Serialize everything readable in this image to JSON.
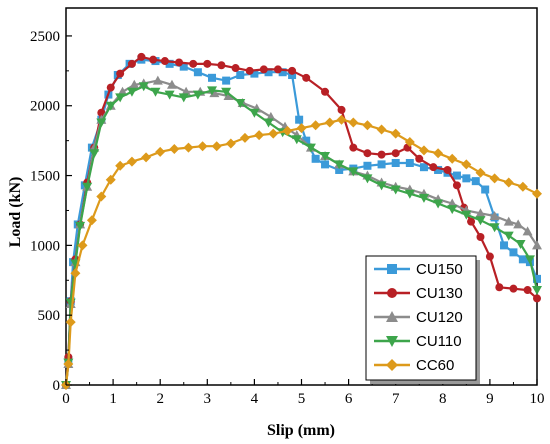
{
  "chart_data": {
    "type": "line",
    "title": "",
    "xlabel": "Slip (mm)",
    "ylabel": "Load (kN)",
    "xlim": [
      0,
      10
    ],
    "ylim": [
      0,
      2700
    ],
    "xticks": [
      0,
      1,
      2,
      3,
      4,
      5,
      6,
      7,
      8,
      9,
      10
    ],
    "yticks": [
      0,
      500,
      1000,
      1500,
      2000,
      2500
    ],
    "grid": false,
    "legend_position": "bottom-right",
    "series": [
      {
        "name": "CU150",
        "color": "#3b9ad9",
        "marker": "square",
        "points": [
          [
            0,
            0
          ],
          [
            0.05,
            180
          ],
          [
            0.1,
            600
          ],
          [
            0.15,
            880
          ],
          [
            0.25,
            1150
          ],
          [
            0.4,
            1430
          ],
          [
            0.55,
            1700
          ],
          [
            0.75,
            1900
          ],
          [
            0.9,
            2080
          ],
          [
            1.1,
            2220
          ],
          [
            1.35,
            2300
          ],
          [
            1.6,
            2330
          ],
          [
            1.9,
            2320
          ],
          [
            2.2,
            2300
          ],
          [
            2.5,
            2280
          ],
          [
            2.8,
            2240
          ],
          [
            3.1,
            2200
          ],
          [
            3.4,
            2180
          ],
          [
            3.7,
            2220
          ],
          [
            4.0,
            2230
          ],
          [
            4.3,
            2240
          ],
          [
            4.6,
            2240
          ],
          [
            4.8,
            2220
          ],
          [
            4.95,
            1900
          ],
          [
            5.1,
            1750
          ],
          [
            5.3,
            1620
          ],
          [
            5.5,
            1580
          ],
          [
            5.8,
            1540
          ],
          [
            6.1,
            1550
          ],
          [
            6.4,
            1570
          ],
          [
            6.7,
            1580
          ],
          [
            7.0,
            1590
          ],
          [
            7.3,
            1590
          ],
          [
            7.6,
            1560
          ],
          [
            7.9,
            1540
          ],
          [
            8.1,
            1520
          ],
          [
            8.3,
            1500
          ],
          [
            8.5,
            1480
          ],
          [
            8.7,
            1460
          ],
          [
            8.9,
            1400
          ],
          [
            9.1,
            1200
          ],
          [
            9.3,
            1000
          ],
          [
            9.5,
            950
          ],
          [
            9.7,
            900
          ],
          [
            9.85,
            880
          ],
          [
            10.0,
            760
          ]
        ]
      },
      {
        "name": "CU130",
        "color": "#b82025",
        "marker": "circle",
        "points": [
          [
            0,
            0
          ],
          [
            0.05,
            200
          ],
          [
            0.1,
            600
          ],
          [
            0.2,
            900
          ],
          [
            0.3,
            1150
          ],
          [
            0.45,
            1450
          ],
          [
            0.6,
            1700
          ],
          [
            0.75,
            1950
          ],
          [
            0.95,
            2130
          ],
          [
            1.15,
            2230
          ],
          [
            1.4,
            2300
          ],
          [
            1.6,
            2350
          ],
          [
            1.85,
            2330
          ],
          [
            2.1,
            2320
          ],
          [
            2.4,
            2310
          ],
          [
            2.7,
            2300
          ],
          [
            3.0,
            2300
          ],
          [
            3.3,
            2290
          ],
          [
            3.6,
            2270
          ],
          [
            3.9,
            2250
          ],
          [
            4.2,
            2260
          ],
          [
            4.5,
            2260
          ],
          [
            4.8,
            2250
          ],
          [
            5.1,
            2200
          ],
          [
            5.5,
            2100
          ],
          [
            5.85,
            1970
          ],
          [
            6.1,
            1700
          ],
          [
            6.4,
            1660
          ],
          [
            6.7,
            1650
          ],
          [
            7.0,
            1660
          ],
          [
            7.25,
            1700
          ],
          [
            7.5,
            1620
          ],
          [
            7.8,
            1560
          ],
          [
            8.1,
            1540
          ],
          [
            8.3,
            1430
          ],
          [
            8.45,
            1270
          ],
          [
            8.6,
            1170
          ],
          [
            8.8,
            1060
          ],
          [
            9.0,
            920
          ],
          [
            9.2,
            700
          ],
          [
            9.5,
            690
          ],
          [
            9.8,
            680
          ],
          [
            10.0,
            620
          ]
        ]
      },
      {
        "name": "CU120",
        "color": "#8c8c8c",
        "marker": "triangle-up",
        "points": [
          [
            0,
            0
          ],
          [
            0.05,
            150
          ],
          [
            0.1,
            580
          ],
          [
            0.2,
            880
          ],
          [
            0.3,
            1150
          ],
          [
            0.45,
            1420
          ],
          [
            0.6,
            1700
          ],
          [
            0.75,
            1900
          ],
          [
            0.95,
            2000
          ],
          [
            1.2,
            2100
          ],
          [
            1.45,
            2150
          ],
          [
            1.65,
            2160
          ],
          [
            1.95,
            2180
          ],
          [
            2.25,
            2150
          ],
          [
            2.55,
            2100
          ],
          [
            2.85,
            2100
          ],
          [
            3.15,
            2090
          ],
          [
            3.45,
            2070
          ],
          [
            3.75,
            2020
          ],
          [
            4.05,
            1980
          ],
          [
            4.35,
            1920
          ],
          [
            4.65,
            1850
          ],
          [
            4.9,
            1790
          ],
          [
            5.2,
            1700
          ],
          [
            5.5,
            1640
          ],
          [
            5.8,
            1580
          ],
          [
            6.1,
            1530
          ],
          [
            6.4,
            1500
          ],
          [
            6.7,
            1450
          ],
          [
            7.0,
            1420
          ],
          [
            7.3,
            1400
          ],
          [
            7.6,
            1370
          ],
          [
            7.9,
            1330
          ],
          [
            8.2,
            1300
          ],
          [
            8.5,
            1250
          ],
          [
            8.8,
            1230
          ],
          [
            9.1,
            1210
          ],
          [
            9.4,
            1170
          ],
          [
            9.6,
            1150
          ],
          [
            9.8,
            1100
          ],
          [
            10.0,
            1000
          ]
        ]
      },
      {
        "name": "CU110",
        "color": "#3da54b",
        "marker": "triangle-down",
        "points": [
          [
            0,
            0
          ],
          [
            0.05,
            160
          ],
          [
            0.1,
            590
          ],
          [
            0.2,
            870
          ],
          [
            0.3,
            1140
          ],
          [
            0.45,
            1420
          ],
          [
            0.6,
            1660
          ],
          [
            0.75,
            1880
          ],
          [
            0.95,
            2000
          ],
          [
            1.15,
            2060
          ],
          [
            1.4,
            2100
          ],
          [
            1.65,
            2140
          ],
          [
            1.9,
            2100
          ],
          [
            2.2,
            2080
          ],
          [
            2.5,
            2060
          ],
          [
            2.8,
            2080
          ],
          [
            3.1,
            2110
          ],
          [
            3.4,
            2100
          ],
          [
            3.7,
            2020
          ],
          [
            4.0,
            1950
          ],
          [
            4.3,
            1880
          ],
          [
            4.6,
            1810
          ],
          [
            4.9,
            1760
          ],
          [
            5.2,
            1700
          ],
          [
            5.5,
            1640
          ],
          [
            5.8,
            1580
          ],
          [
            6.1,
            1530
          ],
          [
            6.4,
            1480
          ],
          [
            6.7,
            1430
          ],
          [
            7.0,
            1400
          ],
          [
            7.3,
            1370
          ],
          [
            7.6,
            1340
          ],
          [
            7.9,
            1300
          ],
          [
            8.2,
            1260
          ],
          [
            8.5,
            1220
          ],
          [
            8.8,
            1180
          ],
          [
            9.1,
            1130
          ],
          [
            9.4,
            1070
          ],
          [
            9.65,
            1010
          ],
          [
            9.85,
            900
          ],
          [
            10.0,
            680
          ]
        ]
      },
      {
        "name": "CC60",
        "color": "#dd9a1b",
        "marker": "diamond",
        "points": [
          [
            0,
            0
          ],
          [
            0.05,
            150
          ],
          [
            0.1,
            450
          ],
          [
            0.2,
            800
          ],
          [
            0.35,
            1000
          ],
          [
            0.55,
            1180
          ],
          [
            0.75,
            1350
          ],
          [
            0.95,
            1470
          ],
          [
            1.15,
            1570
          ],
          [
            1.4,
            1600
          ],
          [
            1.7,
            1630
          ],
          [
            2.0,
            1670
          ],
          [
            2.3,
            1690
          ],
          [
            2.6,
            1700
          ],
          [
            2.9,
            1710
          ],
          [
            3.2,
            1710
          ],
          [
            3.5,
            1730
          ],
          [
            3.8,
            1770
          ],
          [
            4.1,
            1790
          ],
          [
            4.4,
            1800
          ],
          [
            4.7,
            1820
          ],
          [
            5.0,
            1840
          ],
          [
            5.3,
            1860
          ],
          [
            5.6,
            1880
          ],
          [
            5.85,
            1900
          ],
          [
            6.1,
            1880
          ],
          [
            6.4,
            1860
          ],
          [
            6.7,
            1830
          ],
          [
            7.0,
            1800
          ],
          [
            7.3,
            1740
          ],
          [
            7.6,
            1680
          ],
          [
            7.9,
            1660
          ],
          [
            8.2,
            1620
          ],
          [
            8.5,
            1580
          ],
          [
            8.8,
            1520
          ],
          [
            9.1,
            1480
          ],
          [
            9.4,
            1450
          ],
          [
            9.7,
            1420
          ],
          [
            10.0,
            1370
          ]
        ]
      }
    ]
  }
}
